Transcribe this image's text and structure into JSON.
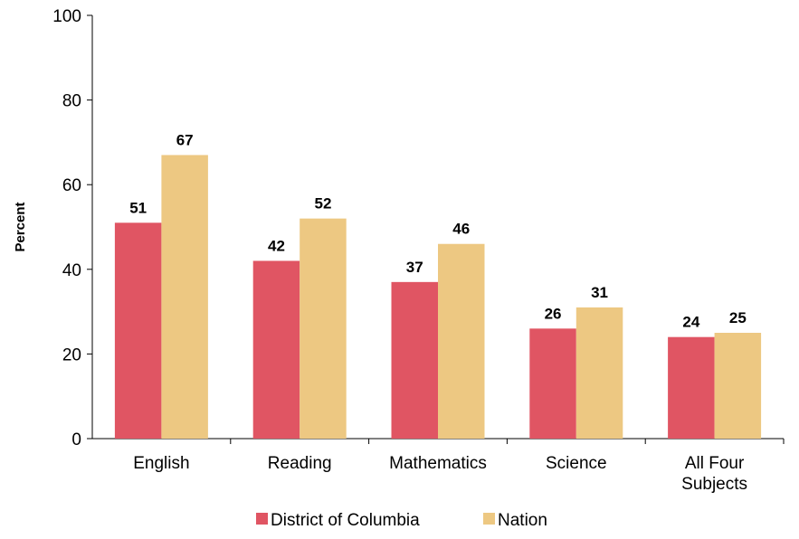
{
  "chart_data": {
    "type": "bar",
    "categories": [
      "English",
      "Reading",
      "Mathematics",
      "Science",
      "All Four Subjects"
    ],
    "category_lines": [
      [
        "English"
      ],
      [
        "Reading"
      ],
      [
        "Mathematics"
      ],
      [
        "Science"
      ],
      [
        "All Four",
        "Subjects"
      ]
    ],
    "series": [
      {
        "name": "District of Columbia",
        "color": "#e05563",
        "values": [
          51,
          42,
          37,
          26,
          24
        ]
      },
      {
        "name": "Nation",
        "color": "#edc882",
        "values": [
          67,
          52,
          46,
          31,
          25
        ]
      }
    ],
    "ylabel": "Percent",
    "xlabel": "",
    "ylim": [
      0,
      100
    ],
    "yticks": [
      0,
      20,
      40,
      60,
      80,
      100
    ],
    "grid": false,
    "legend_position": "bottom"
  }
}
